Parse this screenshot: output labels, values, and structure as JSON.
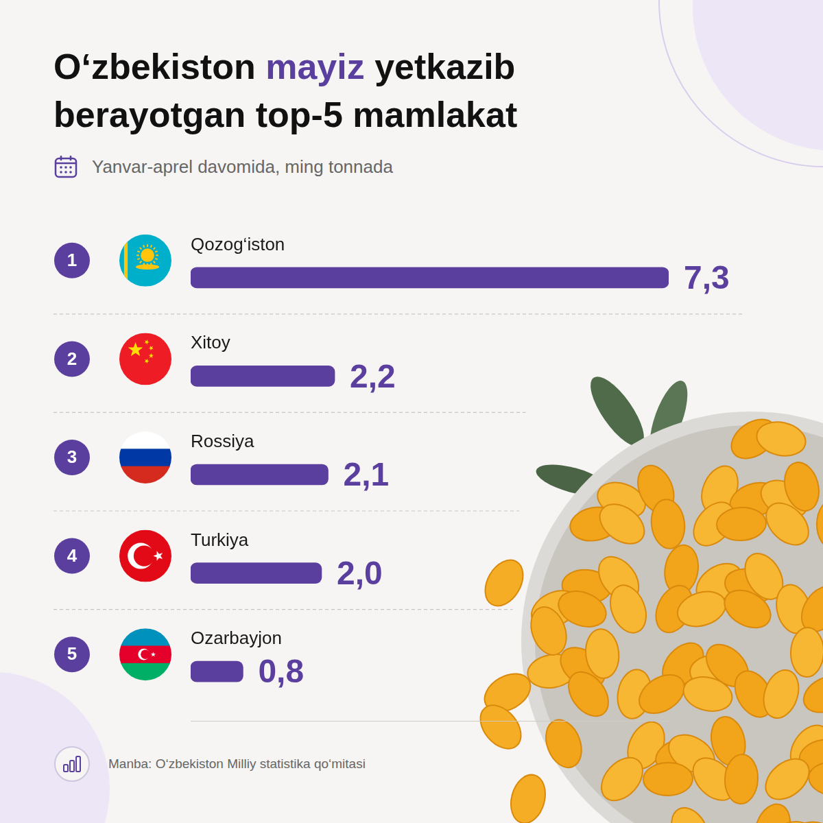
{
  "chart_data": {
    "type": "bar",
    "orientation": "horizontal",
    "title": "O‘zbekiston mayiz yetkazib berayotgan top-5 mamlakat",
    "subtitle": "Yanvar-aprel davomida, ming tonnada",
    "source": "Manba: O‘zbekiston Milliy statistika qo‘mitasi",
    "ranks": [
      1,
      2,
      3,
      4,
      5
    ],
    "categories": [
      "Qozog‘iston",
      "Xitoy",
      "Rossiya",
      "Turkiya",
      "Ozarbayjon"
    ],
    "values": [
      7.3,
      2.2,
      2.1,
      2.0,
      0.8
    ],
    "value_labels": [
      "7,3",
      "2,2",
      "2,1",
      "2,0",
      "0,8"
    ],
    "color": "#5b3f9e",
    "xlim": [
      0,
      7.3
    ],
    "grid": false,
    "data_labels": true,
    "tick_labels": false
  }
}
